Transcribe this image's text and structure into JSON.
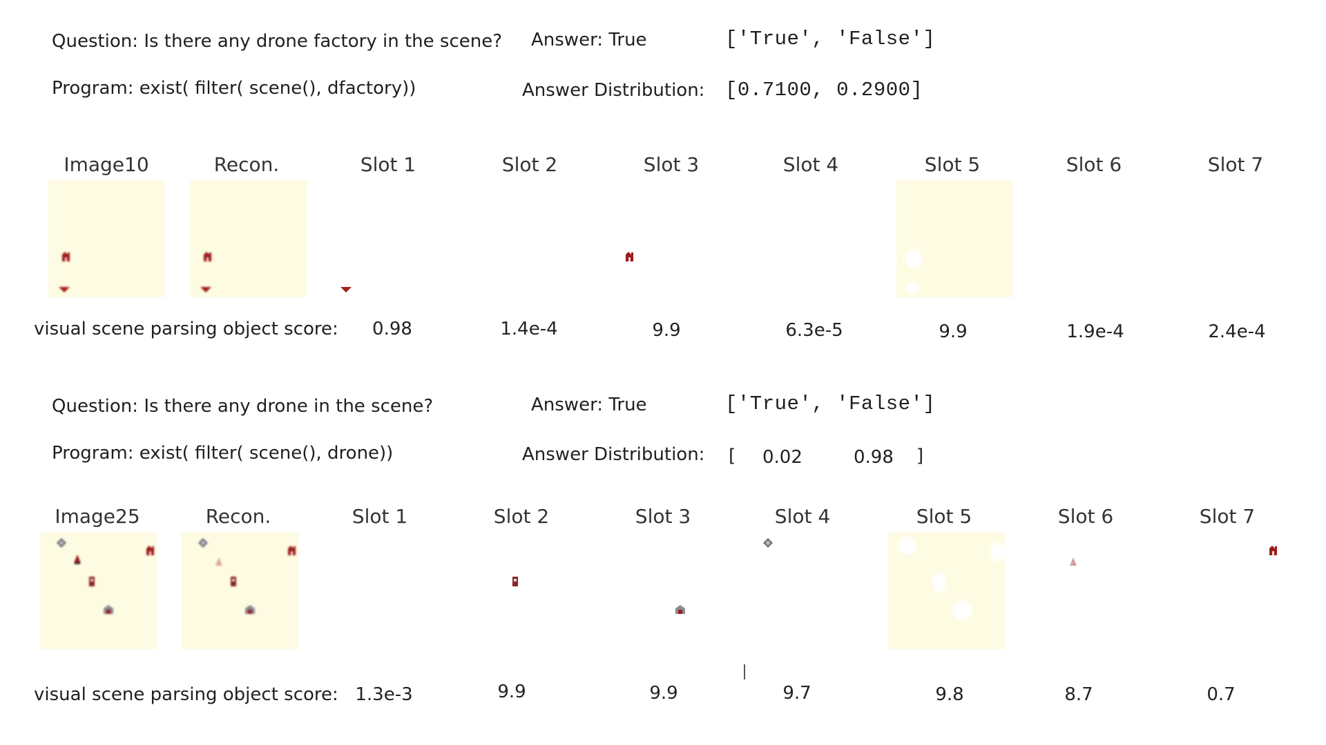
{
  "block1": {
    "question": "Question: Is there any drone factory in the scene?",
    "answer": "Answer: True",
    "choices": "['True', 'False']",
    "program": "Program: exist( filter( scene(), dfactory))",
    "dist_label_a": "Answer",
    "dist_label_b": "Distribution:",
    "dist_values": "[0.7100, 0.2900]",
    "headers": [
      "Image10",
      "Recon.",
      "Slot 1",
      "Slot 2",
      "Slot 3",
      "Slot 4",
      "Slot 5",
      "Slot 6",
      "Slot 7"
    ],
    "score_label": "visual scene parsing object score:",
    "scores": [
      "0.98",
      "1.4e-4",
      "9.9",
      "6.3e-5",
      "9.9",
      "1.9e-4",
      "2.4e-4"
    ]
  },
  "block2": {
    "question": "Question: Is there any drone in the scene?",
    "answer": "Answer: True",
    "choices": "['True', 'False']",
    "program": "Program: exist( filter( scene(), drone))",
    "dist_label_a": "Answer",
    "dist_label_b": "Distribution:",
    "dist_open": "[",
    "dist_v1": "0.02",
    "dist_v2": "0.98",
    "dist_close": "]",
    "headers": [
      "Image25",
      "Recon.",
      "Slot 1",
      "Slot 2",
      "Slot 3",
      "Slot 4",
      "Slot 5",
      "Slot 6",
      "Slot 7"
    ],
    "score_label": "visual scene parsing object score:",
    "scores": [
      "1.3e-3",
      "9.9",
      "9.9",
      "9.7",
      "9.8",
      "8.7",
      "0.7"
    ]
  },
  "colors": {
    "panel_bg": "#fdfbe1",
    "object_red": "#9b1c1c",
    "object_gray": "#6f6f7a"
  }
}
